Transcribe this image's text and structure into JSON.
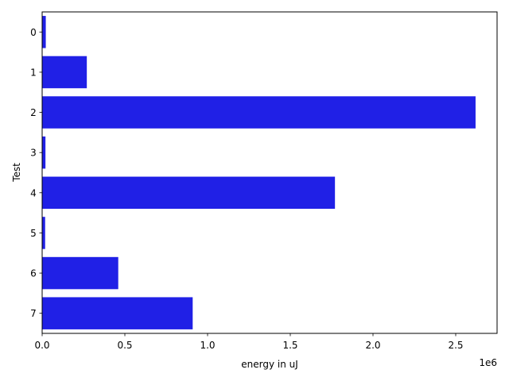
{
  "chart_data": {
    "type": "bar",
    "orientation": "horizontal",
    "categories": [
      "0",
      "1",
      "2",
      "3",
      "4",
      "5",
      "6",
      "7"
    ],
    "values": [
      22000,
      270000,
      2620000,
      20000,
      1770000,
      18000,
      460000,
      910000
    ],
    "xlabel": "energy in uJ",
    "ylabel": "Test",
    "xlim": [
      0,
      2750000
    ],
    "xticks": [
      0,
      500000,
      1000000,
      1500000,
      2000000,
      2500000
    ],
    "xtick_labels": [
      "0.0",
      "0.5",
      "1.0",
      "1.5",
      "2.0",
      "2.5"
    ],
    "offset_text": "1e6",
    "bar_color": "#2020e6",
    "grid": false
  }
}
